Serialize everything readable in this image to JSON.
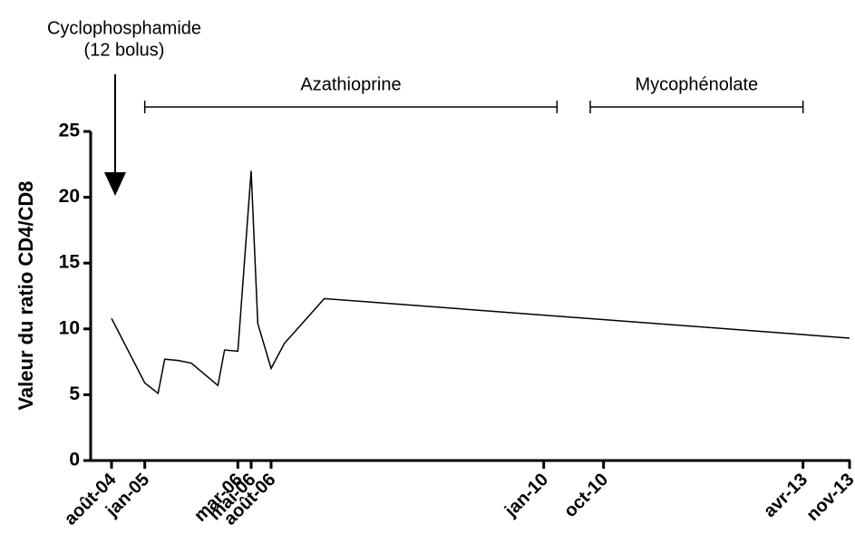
{
  "chart_data": {
    "type": "line",
    "ylabel": "Valeur du ratio CD4/CD8",
    "x": [
      "2004-08",
      "2005-01",
      "2005-03",
      "2005-04",
      "2005-06",
      "2005-08",
      "2005-12",
      "2006-01",
      "2006-03",
      "2006-05",
      "2006-06",
      "2006-08",
      "2006-10",
      "2007-01",
      "2007-04",
      "2013-11"
    ],
    "values": [
      10.8,
      5.9,
      5.1,
      7.7,
      7.6,
      7.4,
      5.7,
      8.4,
      8.3,
      22.0,
      10.4,
      7.0,
      8.9,
      10.6,
      12.3,
      9.3
    ],
    "color": "#000000",
    "xlim": [
      "2004-08",
      "2013-11"
    ],
    "xticks": [
      {
        "value": "2004-08",
        "label": "août-04"
      },
      {
        "value": "2005-01",
        "label": "jan-05"
      },
      {
        "value": "2006-03",
        "label": "mar-06"
      },
      {
        "value": "2006-05",
        "label": "mai-06"
      },
      {
        "value": "2006-08",
        "label": "août-06"
      },
      {
        "value": "2010-01",
        "label": "jan-10"
      },
      {
        "value": "2010-10",
        "label": "oct-10"
      },
      {
        "value": "2013-04",
        "label": "avr-13"
      },
      {
        "value": "2013-11",
        "label": "nov-13"
      }
    ],
    "ylim": [
      0,
      25
    ],
    "yticks": [
      0,
      5,
      10,
      15,
      20,
      25
    ],
    "annotations": [
      {
        "lines": [
          "Cyclophosphamide",
          "(12 bolus)"
        ],
        "at": "2004-08"
      },
      {
        "text": "Azathioprine",
        "start": "2005-01",
        "end": "2010-03"
      },
      {
        "text": "Mycophénolate",
        "start": "2010-08",
        "end": "2013-04"
      }
    ]
  }
}
